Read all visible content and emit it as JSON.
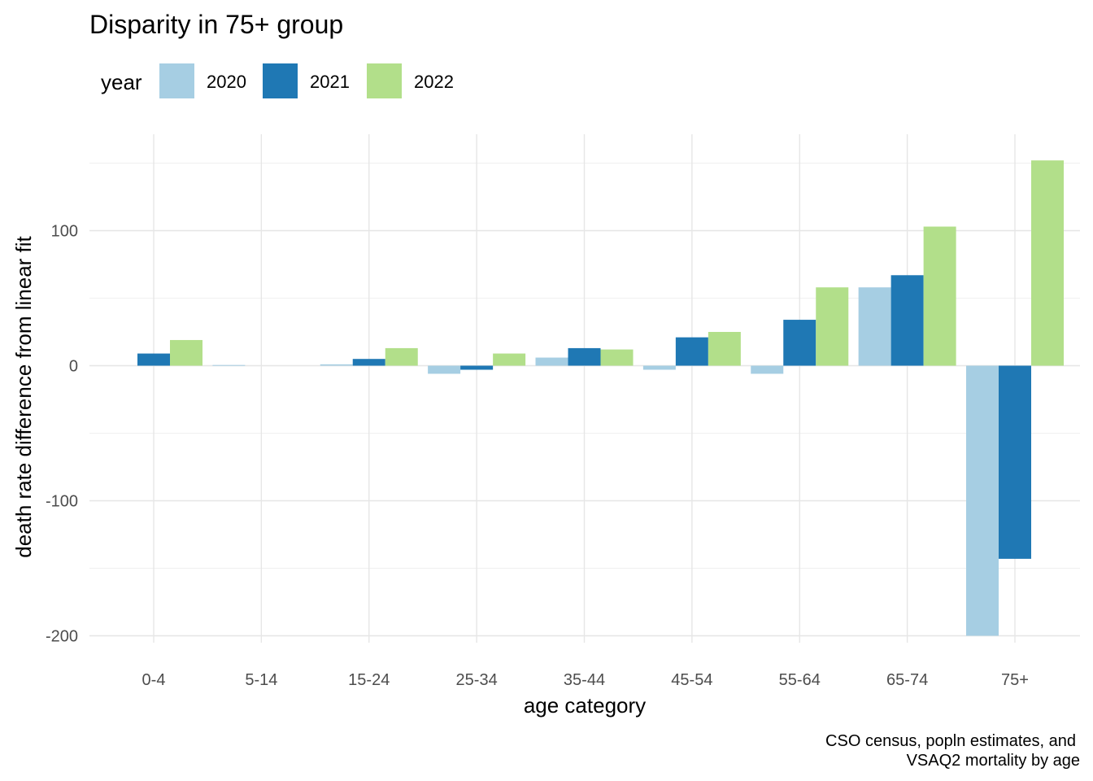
{
  "chart_data": {
    "type": "bar",
    "title": "Disparity in 75+ group",
    "xlabel": "age category",
    "ylabel": "death rate difference from linear fit",
    "legend_title": "year",
    "legend_position": "top-left",
    "caption": [
      "CSO census, popln estimates, and",
      "VSAQ2 mortality by age"
    ],
    "grid": true,
    "categories": [
      "0-4",
      "5-14",
      "15-24",
      "25-34",
      "35-44",
      "45-54",
      "55-64",
      "65-74",
      "75+"
    ],
    "ylim": [
      -205,
      157
    ],
    "yticks": [
      -200,
      -100,
      0,
      100
    ],
    "ytick_labels": [
      "-200",
      "-100",
      "0",
      "100"
    ],
    "series": [
      {
        "name": "2020",
        "color": "#a6cee3",
        "values": [
          0,
          0.5,
          1,
          -6,
          6,
          -3,
          -6,
          58,
          -200
        ]
      },
      {
        "name": "2021",
        "color": "#1f78b4",
        "values": [
          9,
          0,
          5,
          -3,
          13,
          21,
          34,
          67,
          -143
        ]
      },
      {
        "name": "2022",
        "color": "#b2df8a",
        "values": [
          19,
          0,
          13,
          9,
          12,
          25,
          58,
          103,
          152
        ]
      }
    ]
  }
}
